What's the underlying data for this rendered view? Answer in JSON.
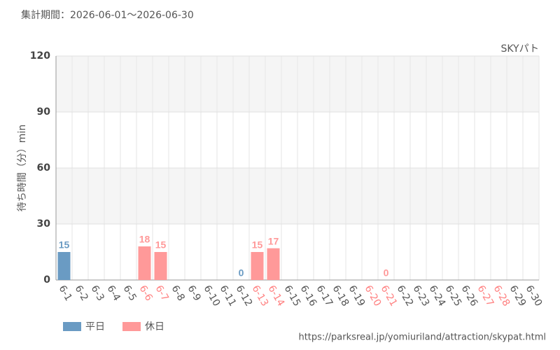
{
  "chart_data": {
    "type": "bar",
    "title": "集計期間：2026-06-01～2026-06-30",
    "subtitle": "SKYパト",
    "y_label": "待ち時間（分）min",
    "source": "https://parksreal.jp/yomiuriland/attraction/skypat.html",
    "categories": [
      "6-1",
      "6-2",
      "6-3",
      "6-4",
      "6-5",
      "6-6",
      "6-7",
      "6-8",
      "6-9",
      "6-10",
      "6-11",
      "6-12",
      "6-13",
      "6-14",
      "6-15",
      "6-16",
      "6-17",
      "6-18",
      "6-19",
      "6-20",
      "6-21",
      "6-22",
      "6-23",
      "6-24",
      "6-25",
      "6-26",
      "6-27",
      "6-28",
      "6-29",
      "6-30"
    ],
    "category_colors": [
      "#555",
      "#555",
      "#555",
      "#555",
      "#555",
      "#ff8080",
      "#ff8080",
      "#555",
      "#555",
      "#555",
      "#555",
      "#555",
      "#ff8080",
      "#ff8080",
      "#555",
      "#555",
      "#555",
      "#555",
      "#555",
      "#ff8080",
      "#ff8080",
      "#555",
      "#555",
      "#555",
      "#555",
      "#555",
      "#ff8080",
      "#ff8080",
      "#555",
      "#555"
    ],
    "series": [
      {
        "name": "平日",
        "color": "#6a9bc3",
        "values": [
          15,
          null,
          null,
          null,
          null,
          null,
          null,
          null,
          null,
          null,
          null,
          0,
          null,
          null,
          null,
          null,
          null,
          null,
          null,
          null,
          null,
          null,
          null,
          null,
          null,
          null,
          null,
          null,
          null,
          null
        ]
      },
      {
        "name": "休日",
        "color": "#ff9999",
        "values": [
          null,
          null,
          null,
          null,
          null,
          18,
          15,
          null,
          null,
          null,
          null,
          null,
          15,
          17,
          null,
          null,
          null,
          null,
          null,
          null,
          0,
          null,
          null,
          null,
          null,
          null,
          null,
          null,
          null,
          null
        ]
      }
    ],
    "ylim": [
      0,
      120
    ],
    "yticks": [
      0,
      30,
      60,
      90,
      120
    ],
    "grid": true,
    "legend": "bottom-left"
  }
}
